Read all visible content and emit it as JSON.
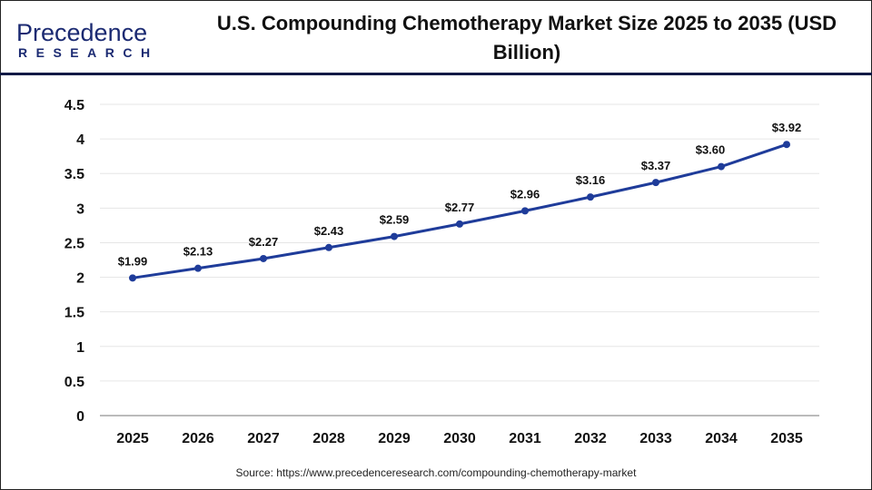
{
  "logo": {
    "main": "Precedence",
    "sub": "RESEARCH"
  },
  "title": "U.S. Compounding Chemotherapy Market Size 2025 to 2035 (USD Billion)",
  "source": "Source: https://www.precedenceresearch.com/compounding-chemotherapy-market",
  "colors": {
    "line": "#1f3c9a",
    "header_rule": "#0f1a45"
  },
  "chart_data": {
    "type": "line",
    "title": "U.S. Compounding Chemotherapy Market Size 2025 to 2035 (USD Billion)",
    "categories": [
      "2025",
      "2026",
      "2027",
      "2028",
      "2029",
      "2030",
      "2031",
      "2032",
      "2033",
      "2034",
      "2035"
    ],
    "values": [
      1.99,
      2.13,
      2.27,
      2.43,
      2.59,
      2.77,
      2.96,
      3.16,
      3.37,
      3.6,
      3.92
    ],
    "data_labels": [
      "$1.99",
      "$2.13",
      "$2.27",
      "$2.43",
      "$2.59",
      "$2.77",
      "$2.96",
      "$3.16",
      "$3.37",
      "$3.60",
      "$3.92"
    ],
    "yticks": [
      "0",
      "0.5",
      "1",
      "1.5",
      "2",
      "2.5",
      "3",
      "3.5",
      "4",
      "4.5"
    ],
    "ylim": [
      0,
      4.5
    ],
    "grid": true,
    "xlabel": "",
    "ylabel": ""
  }
}
